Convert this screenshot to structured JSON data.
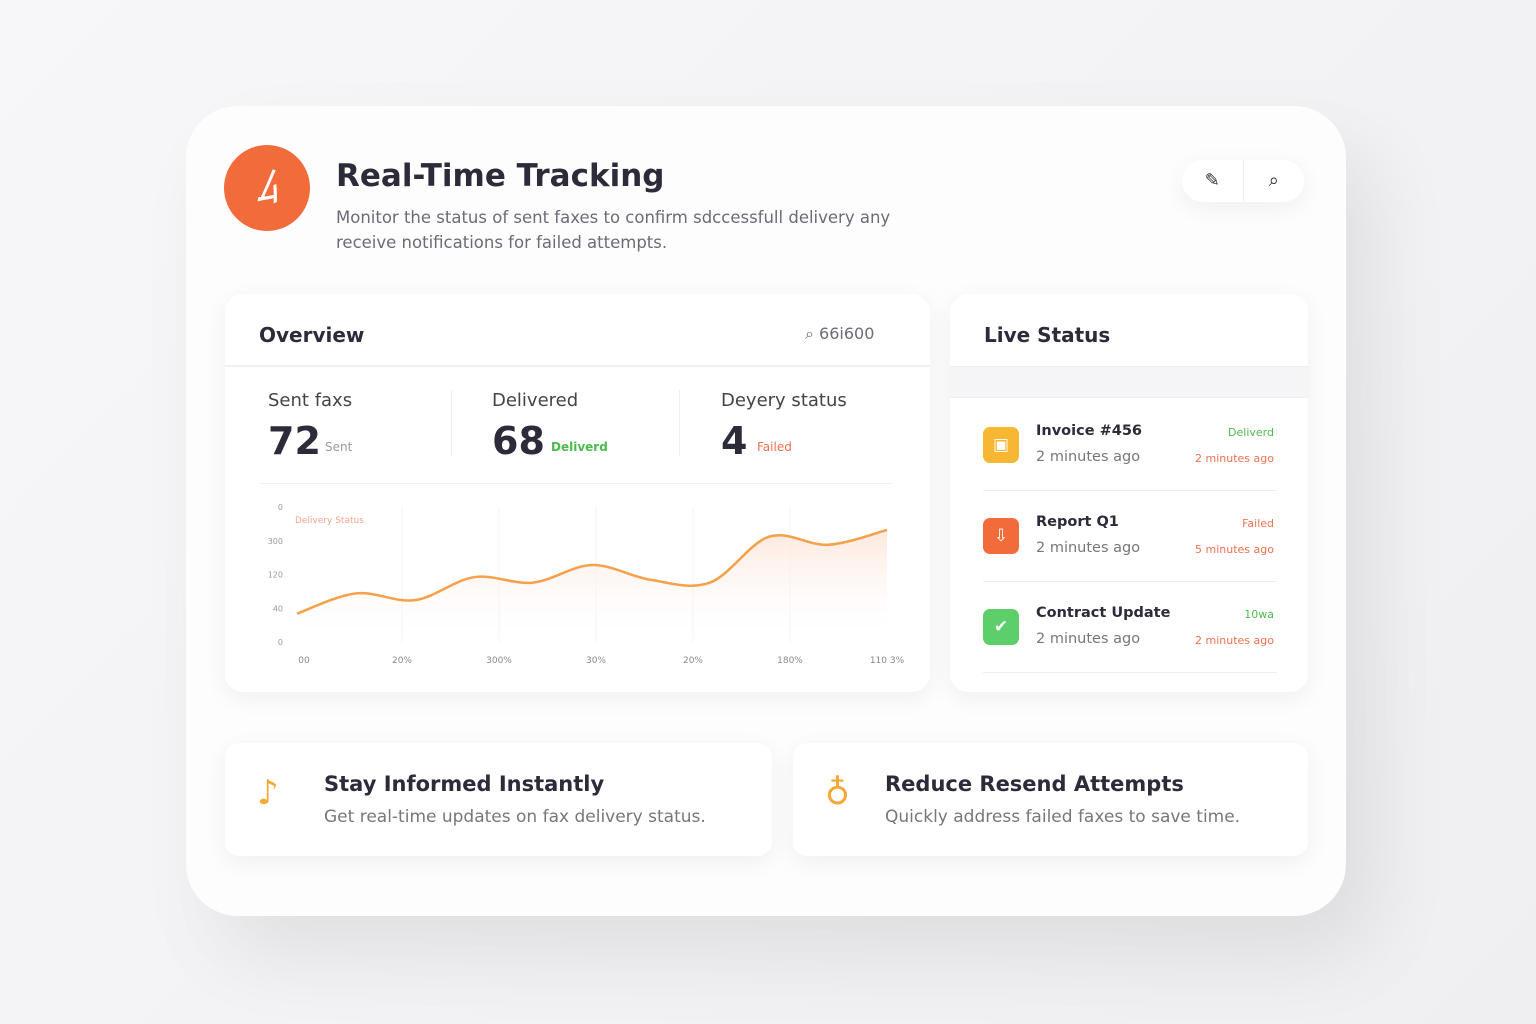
{
  "header": {
    "title": "Real-Time Tracking",
    "subtitle_lines": [
      "Monitor the status of sent faxes to confirm sdccessfull delivery any",
      "receive notifications for failed attempts."
    ]
  },
  "overview": {
    "title": "Overview",
    "search_value": "66i600",
    "stats": [
      {
        "label": "Sent faxs",
        "value": "72",
        "note": "Sent"
      },
      {
        "label": "Delivered",
        "value": "68",
        "note": "Deliverd"
      },
      {
        "label": "Deyery status",
        "value": "4",
        "note": "Failed"
      }
    ]
  },
  "chart": {
    "type": "line",
    "label": "Delivery Status",
    "ylim": [
      0,
      100
    ],
    "y_labels": [
      "0",
      "300",
      "120",
      "40",
      "0"
    ],
    "x_labels": [
      "00",
      "20%",
      "300%",
      "30%",
      "20%",
      "180%",
      "110 3%"
    ],
    "values": [
      21,
      36,
      31,
      48,
      44,
      57,
      46,
      44,
      78,
      72,
      83
    ],
    "color": "#f5a04a"
  },
  "live_status": {
    "title": "Live Status",
    "items": [
      {
        "name": "Invoice #456",
        "time": "2 minutes ago",
        "status": "Deliverd",
        "status_time": "2 minutes ago"
      },
      {
        "name": "Report Q1",
        "time": "2 minutes ago",
        "status": "Failed",
        "status_time": "5 minutes ago"
      },
      {
        "name": "Contract Update",
        "time": "2 minutes ago",
        "status": "10wa",
        "status_time": "2 minutes ago"
      }
    ]
  },
  "features": [
    {
      "title": "Stay Informed Instantly",
      "text": "Get real-time updates on fax delivery status."
    },
    {
      "title": "Reduce Resend Attempts",
      "text": "Quickly address failed faxes to save time."
    }
  ]
}
